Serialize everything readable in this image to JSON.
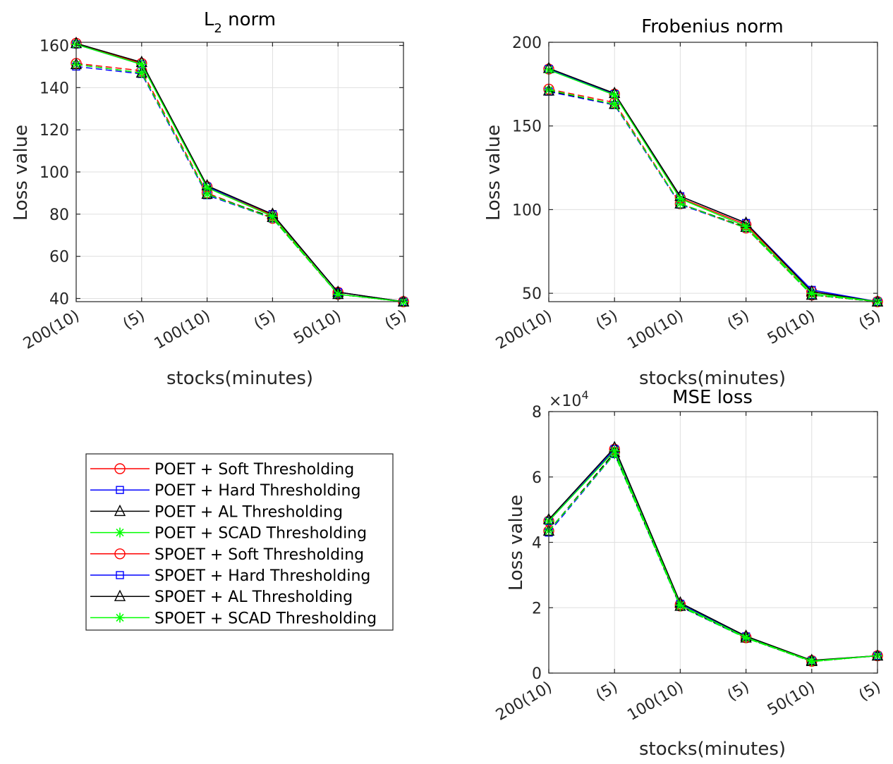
{
  "chart_data": [
    {
      "type": "line",
      "title": "L2 norm",
      "title_main": "L",
      "title_sub": "2",
      "title_rest": " norm",
      "xlabel": "stocks(minutes)",
      "ylabel": "Loss value",
      "categories": [
        "200(10)",
        "(5)",
        "100(10)",
        "(5)",
        "50(10)",
        "(5)"
      ],
      "ylim": [
        38.5,
        161.5
      ],
      "yticks": [
        40,
        60,
        80,
        100,
        120,
        140,
        160
      ],
      "ytick_labels": [
        "40",
        "60",
        "80",
        "100",
        "120",
        "140",
        "160"
      ],
      "grid": true,
      "series": [
        {
          "name": "POET + Soft Thresholding",
          "values": [
            161,
            151.5,
            93,
            79.5,
            43,
            38.5
          ]
        },
        {
          "name": "POET + Hard Thresholding",
          "values": [
            160.5,
            151,
            93,
            80,
            43,
            38.5
          ]
        },
        {
          "name": "POET + AL Thresholding",
          "values": [
            161,
            152,
            93.5,
            80,
            43,
            38.5
          ]
        },
        {
          "name": "POET + SCAD Thresholding",
          "values": [
            160.5,
            151,
            92.5,
            79,
            42,
            38.5
          ]
        },
        {
          "name": "SPOET + Soft Thresholding",
          "values": [
            151.5,
            148,
            90,
            78,
            42,
            38.5
          ]
        },
        {
          "name": "SPOET + Hard Thresholding",
          "values": [
            150,
            146.5,
            89,
            78,
            42,
            38.5
          ]
        },
        {
          "name": "SPOET + AL Thresholding",
          "values": [
            151,
            147,
            89.5,
            78.5,
            42,
            38.5
          ]
        },
        {
          "name": "SPOET + SCAD Thresholding",
          "values": [
            151,
            147,
            89.5,
            78,
            42,
            38.5
          ]
        }
      ]
    },
    {
      "type": "line",
      "title": "Frobenius norm",
      "xlabel": "stocks(minutes)",
      "ylabel": "Loss value",
      "categories": [
        "200(10)",
        "(5)",
        "100(10)",
        "(5)",
        "50(10)",
        "(5)"
      ],
      "ylim": [
        45,
        200
      ],
      "yticks": [
        50,
        100,
        150,
        200
      ],
      "ytick_labels": [
        "50",
        "100",
        "150",
        "200"
      ],
      "grid": true,
      "series": [
        {
          "name": "POET + Soft Thresholding",
          "values": [
            184,
            169,
            107,
            91,
            51,
            45
          ]
        },
        {
          "name": "POET + Hard Thresholding",
          "values": [
            184,
            169,
            108,
            92,
            52,
            45
          ]
        },
        {
          "name": "POET + AL Thresholding",
          "values": [
            184.5,
            169.5,
            108,
            92,
            51,
            45
          ]
        },
        {
          "name": "POET + SCAD Thresholding",
          "values": [
            183.5,
            168.5,
            106.5,
            90,
            50,
            45
          ]
        },
        {
          "name": "SPOET + Soft Thresholding",
          "values": [
            172,
            164,
            103.5,
            89,
            49,
            45
          ]
        },
        {
          "name": "SPOET + Hard Thresholding",
          "values": [
            170.5,
            162.5,
            103,
            89,
            49,
            45
          ]
        },
        {
          "name": "SPOET + AL Thresholding",
          "values": [
            171,
            163,
            103.5,
            89.5,
            49,
            45
          ]
        },
        {
          "name": "SPOET + SCAD Thresholding",
          "values": [
            171.5,
            163,
            103.5,
            89,
            49,
            45
          ]
        }
      ]
    },
    {
      "type": "line",
      "title": "MSE loss",
      "xlabel": "stocks(minutes)",
      "ylabel": "Loss value",
      "exponent_base": "×10",
      "exponent_power": "4",
      "categories": [
        "200(10)",
        "(5)",
        "100(10)",
        "(5)",
        "50(10)",
        "(5)"
      ],
      "ylim": [
        0,
        80000
      ],
      "yticks": [
        0,
        20000,
        40000,
        60000,
        80000
      ],
      "ytick_labels": [
        "0",
        "2",
        "4",
        "6",
        "8"
      ],
      "grid": true,
      "series": [
        {
          "name": "POET + Soft Thresholding",
          "values": [
            46500,
            68500,
            21000,
            11000,
            3800,
            5300
          ]
        },
        {
          "name": "POET + Hard Thresholding",
          "values": [
            46500,
            68500,
            21200,
            11200,
            3800,
            5300
          ]
        },
        {
          "name": "POET + AL Thresholding",
          "values": [
            47000,
            69000,
            21500,
            11300,
            3900,
            5300
          ]
        },
        {
          "name": "POET + SCAD Thresholding",
          "values": [
            46500,
            68000,
            20800,
            10900,
            3700,
            5300
          ]
        },
        {
          "name": "SPOET + Soft Thresholding",
          "values": [
            43500,
            67500,
            20500,
            10800,
            3600,
            5300
          ]
        },
        {
          "name": "SPOET + Hard Thresholding",
          "values": [
            43000,
            67000,
            20300,
            10700,
            3600,
            5300
          ]
        },
        {
          "name": "SPOET + AL Thresholding",
          "values": [
            43500,
            67500,
            20500,
            10800,
            3600,
            5300
          ]
        },
        {
          "name": "SPOET + SCAD Thresholding",
          "values": [
            43500,
            67000,
            20400,
            10700,
            3500,
            5300
          ]
        }
      ]
    }
  ],
  "legend": {
    "entries": [
      {
        "label": "POET + Soft Thresholding",
        "color": "#ff0000",
        "marker": "circle",
        "dash": false
      },
      {
        "label": "POET + Hard Thresholding",
        "color": "#0000ff",
        "marker": "square",
        "dash": false
      },
      {
        "label": "POET + AL Thresholding",
        "color": "#000000",
        "marker": "triangle",
        "dash": false
      },
      {
        "label": "POET + SCAD Thresholding",
        "color": "#00ff00",
        "marker": "asterisk",
        "dash": false
      },
      {
        "label": "SPOET + Soft Thresholding",
        "color": "#ff0000",
        "marker": "circle",
        "dash": true
      },
      {
        "label": "SPOET + Hard Thresholding",
        "color": "#0000ff",
        "marker": "square",
        "dash": true
      },
      {
        "label": "SPOET + AL Thresholding",
        "color": "#000000",
        "marker": "triangle",
        "dash": true
      },
      {
        "label": "SPOET + SCAD Thresholding",
        "color": "#00ff00",
        "marker": "asterisk",
        "dash": true
      }
    ]
  },
  "colors": {
    "grid": "#dfdfdf",
    "axis": "#262626"
  }
}
